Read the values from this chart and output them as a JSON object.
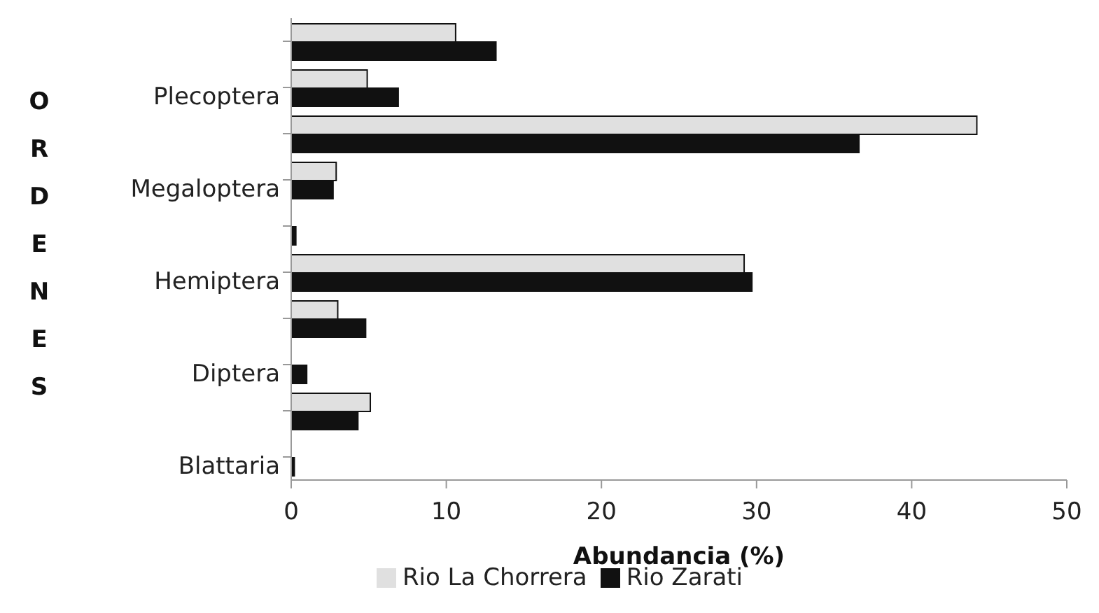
{
  "chart_data": {
    "type": "bar",
    "orientation": "horizontal",
    "xlabel": "Abundancia (%)",
    "ylabel": "ORDENES",
    "categories": [
      null,
      "Plecoptera",
      null,
      "Megaloptera",
      null,
      "Hemiptera",
      null,
      "Diptera",
      null,
      "Blattaria"
    ],
    "series": [
      {
        "name": "Rio La Chorrera",
        "color": "#e0e0e0",
        "values": [
          10.6,
          4.9,
          44.2,
          2.9,
          0,
          29.2,
          3.0,
          0,
          5.1,
          0
        ]
      },
      {
        "name": "Rio Zarati",
        "color": "#111111",
        "values": [
          13.2,
          6.9,
          36.6,
          2.7,
          0.3,
          29.7,
          4.8,
          1.0,
          4.3,
          0.2
        ]
      }
    ],
    "xlim": [
      0,
      50
    ],
    "xticks": [
      0,
      10,
      20,
      30,
      40,
      50
    ],
    "grid": false,
    "legend": "bottom"
  }
}
